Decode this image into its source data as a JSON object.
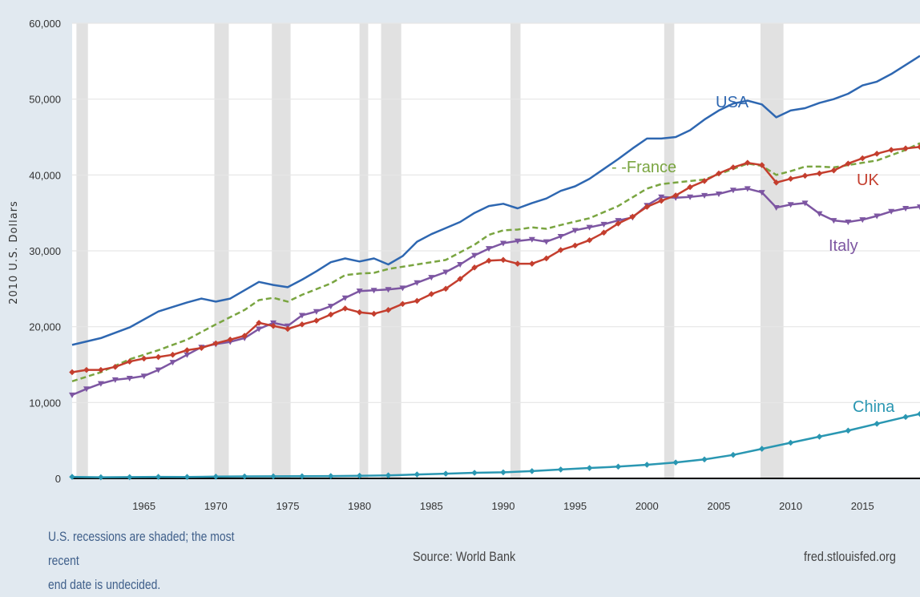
{
  "chart_data": {
    "type": "line",
    "ylabel": "2010 U.S. Dollars",
    "xlim": [
      1960,
      2019
    ],
    "ylim": [
      0,
      60000
    ],
    "y_ticks": [
      0,
      10000,
      20000,
      30000,
      40000,
      50000,
      60000
    ],
    "y_tick_labels": [
      "0",
      "10,000",
      "20,000",
      "30,000",
      "40,000",
      "50,000",
      "60,000"
    ],
    "x_ticks": [
      1965,
      1970,
      1975,
      1980,
      1985,
      1990,
      1995,
      2000,
      2005,
      2010,
      2015
    ],
    "x_tick_labels": [
      "1965",
      "1970",
      "1975",
      "1980",
      "1985",
      "1990",
      "1995",
      "2000",
      "2005",
      "2010",
      "2015"
    ],
    "grid": true,
    "recessions": [
      [
        1960.3,
        1961.1
      ],
      [
        1969.9,
        1970.9
      ],
      [
        1973.9,
        1975.2
      ],
      [
        1980.0,
        1980.6
      ],
      [
        1981.5,
        1982.9
      ],
      [
        1990.5,
        1991.2
      ],
      [
        2001.2,
        2001.9
      ],
      [
        2007.9,
        2009.5
      ]
    ],
    "series": [
      {
        "name": "USA",
        "label": "USA",
        "color": "#2e67b1",
        "style": "solid",
        "marker": "none",
        "x": [
          1960,
          1962,
          1964,
          1966,
          1968,
          1969,
          1970,
          1971,
          1972,
          1973,
          1974,
          1975,
          1976,
          1977,
          1978,
          1979,
          1980,
          1981,
          1982,
          1983,
          1984,
          1985,
          1986,
          1987,
          1988,
          1989,
          1990,
          1991,
          1992,
          1993,
          1994,
          1995,
          1996,
          1997,
          1998,
          1999,
          2000,
          2001,
          2002,
          2003,
          2004,
          2005,
          2006,
          2007,
          2008,
          2009,
          2010,
          2011,
          2012,
          2013,
          2014,
          2015,
          2016,
          2017,
          2018,
          2019
        ],
        "y": [
          17600,
          18500,
          19900,
          22000,
          23200,
          23700,
          23300,
          23700,
          24800,
          25900,
          25500,
          25200,
          26200,
          27300,
          28500,
          29000,
          28600,
          29000,
          28200,
          29300,
          31200,
          32200,
          33000,
          33800,
          35000,
          35900,
          36200,
          35600,
          36300,
          36900,
          37900,
          38500,
          39500,
          40800,
          42100,
          43500,
          44800,
          44800,
          45000,
          45900,
          47300,
          48500,
          49400,
          49800,
          49300,
          47600,
          48500,
          48800,
          49500,
          50000,
          50700,
          51800,
          52300,
          53300,
          54500,
          55700
        ]
      },
      {
        "name": "France",
        "label": "- -France",
        "color": "#7aa541",
        "style": "dashed",
        "marker": "none",
        "x": [
          1960,
          1962,
          1964,
          1966,
          1968,
          1970,
          1972,
          1973,
          1974,
          1975,
          1976,
          1978,
          1979,
          1980,
          1981,
          1982,
          1984,
          1986,
          1988,
          1989,
          1990,
          1991,
          1992,
          1993,
          1994,
          1996,
          1998,
          2000,
          2001,
          2002,
          2004,
          2006,
          2007,
          2008,
          2009,
          2010,
          2011,
          2012,
          2013,
          2014,
          2016,
          2018,
          2019
        ],
        "y": [
          12800,
          14000,
          15700,
          16900,
          18300,
          20300,
          22200,
          23500,
          23800,
          23300,
          24200,
          25700,
          26800,
          27000,
          27100,
          27600,
          28200,
          28800,
          30800,
          32100,
          32700,
          32800,
          33100,
          32900,
          33400,
          34300,
          35900,
          38200,
          38800,
          39000,
          39400,
          40800,
          41500,
          41200,
          40000,
          40500,
          41100,
          41100,
          41000,
          41300,
          41900,
          43300,
          44200
        ]
      },
      {
        "name": "UK",
        "label": "UK",
        "color": "#c43e2e",
        "style": "solid",
        "marker": "diamond",
        "x": [
          1960,
          1961,
          1962,
          1963,
          1964,
          1965,
          1966,
          1967,
          1968,
          1969,
          1970,
          1971,
          1972,
          1973,
          1974,
          1975,
          1976,
          1977,
          1978,
          1979,
          1980,
          1981,
          1982,
          1983,
          1984,
          1985,
          1986,
          1987,
          1988,
          1989,
          1990,
          1991,
          1992,
          1993,
          1994,
          1995,
          1996,
          1997,
          1998,
          1999,
          2000,
          2001,
          2002,
          2003,
          2004,
          2005,
          2006,
          2007,
          2008,
          2009,
          2010,
          2011,
          2012,
          2013,
          2014,
          2015,
          2016,
          2017,
          2018,
          2019
        ],
        "y": [
          14000,
          14300,
          14300,
          14700,
          15400,
          15800,
          16000,
          16300,
          16900,
          17200,
          17800,
          18300,
          18800,
          20500,
          20100,
          19700,
          20300,
          20800,
          21600,
          22400,
          21900,
          21700,
          22200,
          23000,
          23400,
          24300,
          25000,
          26300,
          27800,
          28700,
          28800,
          28300,
          28300,
          29000,
          30100,
          30700,
          31400,
          32400,
          33600,
          34500,
          35800,
          36600,
          37300,
          38400,
          39200,
          40200,
          41000,
          41600,
          41300,
          39000,
          39500,
          39900,
          40200,
          40600,
          41500,
          42200,
          42800,
          43300,
          43500,
          43700
        ]
      },
      {
        "name": "Italy",
        "label": "Italy",
        "color": "#7d56a2",
        "style": "solid",
        "marker": "triangle-down",
        "x": [
          1960,
          1961,
          1962,
          1963,
          1964,
          1965,
          1966,
          1967,
          1968,
          1969,
          1970,
          1971,
          1972,
          1973,
          1974,
          1975,
          1976,
          1977,
          1978,
          1979,
          1980,
          1981,
          1982,
          1983,
          1984,
          1985,
          1986,
          1987,
          1988,
          1989,
          1990,
          1991,
          1992,
          1993,
          1994,
          1995,
          1996,
          1997,
          1998,
          1999,
          2000,
          2001,
          2002,
          2003,
          2004,
          2005,
          2006,
          2007,
          2008,
          2009,
          2010,
          2011,
          2012,
          2013,
          2014,
          2015,
          2016,
          2017,
          2018,
          2019
        ],
        "y": [
          11000,
          11800,
          12500,
          13000,
          13200,
          13500,
          14300,
          15300,
          16300,
          17300,
          17700,
          18000,
          18500,
          19700,
          20500,
          20100,
          21500,
          22000,
          22700,
          23800,
          24700,
          24800,
          24900,
          25100,
          25800,
          26500,
          27200,
          28200,
          29400,
          30300,
          31000,
          31300,
          31500,
          31200,
          31900,
          32700,
          33100,
          33500,
          34000,
          34400,
          36000,
          37100,
          37000,
          37100,
          37300,
          37500,
          38000,
          38200,
          37700,
          35700,
          36100,
          36300,
          34900,
          34000,
          33800,
          34100,
          34600,
          35200,
          35600,
          35800
        ]
      },
      {
        "name": "China",
        "label": "China",
        "color": "#2a97b2",
        "style": "solid",
        "marker": "diamond",
        "x": [
          1960,
          1962,
          1964,
          1966,
          1968,
          1970,
          1972,
          1974,
          1976,
          1978,
          1980,
          1982,
          1984,
          1986,
          1988,
          1990,
          1992,
          1994,
          1996,
          1998,
          2000,
          2002,
          2004,
          2006,
          2008,
          2010,
          2012,
          2014,
          2016,
          2018,
          2019
        ],
        "y": [
          200,
          150,
          170,
          200,
          190,
          230,
          260,
          270,
          280,
          310,
          350,
          400,
          520,
          620,
          740,
          800,
          960,
          1170,
          1370,
          1550,
          1800,
          2100,
          2500,
          3100,
          3900,
          4700,
          5500,
          6300,
          7200,
          8100,
          8500
        ]
      }
    ]
  },
  "footer": {
    "note_line1": "U.S. recessions are shaded; the most recent",
    "note_line2": "end date is undecided.",
    "source": "Source: World Bank",
    "site": "fred.stlouisfed.org"
  }
}
